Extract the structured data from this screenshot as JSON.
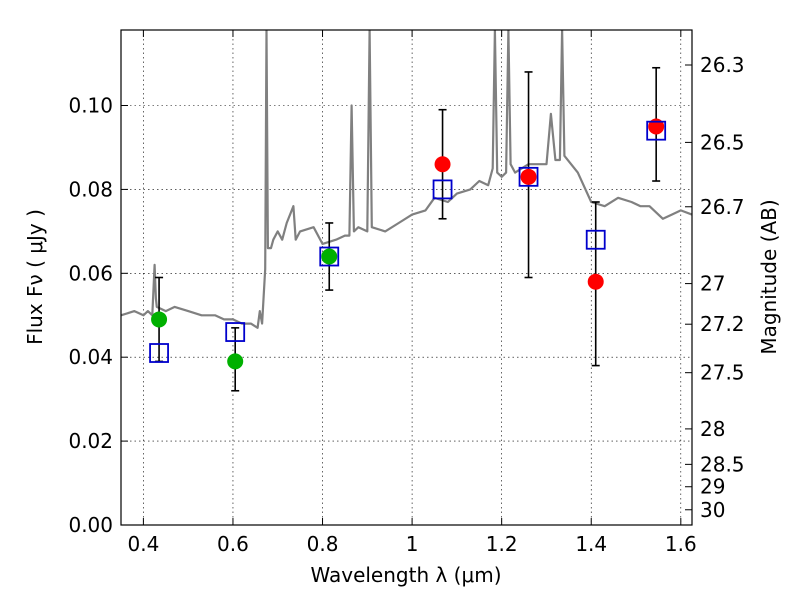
{
  "chart_data": {
    "type": "scatter",
    "xlabel": "Wavelength  λ (μm)",
    "ylabel": "Flux  Fν  ( μJy )",
    "ylabel_right": "Magnitude (AB)",
    "xlim": [
      0.35,
      1.625
    ],
    "ylim": [
      0.0,
      0.118
    ],
    "grid": true,
    "x_ticks": [
      {
        "value": 0.4,
        "label": "0.4"
      },
      {
        "value": 0.6,
        "label": "0.6"
      },
      {
        "value": 0.8,
        "label": "0.8"
      },
      {
        "value": 1.0,
        "label": "1"
      },
      {
        "value": 1.2,
        "label": "1.2"
      },
      {
        "value": 1.4,
        "label": "1.4"
      },
      {
        "value": 1.6,
        "label": "1.6"
      }
    ],
    "y_ticks": [
      {
        "value": 0.0,
        "label": "0.00"
      },
      {
        "value": 0.02,
        "label": "0.02"
      },
      {
        "value": 0.04,
        "label": "0.04"
      },
      {
        "value": 0.06,
        "label": "0.06"
      },
      {
        "value": 0.08,
        "label": "0.08"
      },
      {
        "value": 0.1,
        "label": "0.10"
      }
    ],
    "right_ticks": [
      {
        "mag": 26.3,
        "label": "26.3"
      },
      {
        "mag": 26.5,
        "label": "26.5"
      },
      {
        "mag": 26.7,
        "label": "26.7"
      },
      {
        "mag": 27.0,
        "label": "27"
      },
      {
        "mag": 27.2,
        "label": "27.2"
      },
      {
        "mag": 27.5,
        "label": "27.5"
      },
      {
        "mag": 28.0,
        "label": "28"
      },
      {
        "mag": 28.5,
        "label": "28.5"
      },
      {
        "mag": 29.0,
        "label": "29"
      },
      {
        "mag": 30.0,
        "label": "30"
      }
    ],
    "colors": {
      "template": "#808080",
      "green": "#00b000",
      "red": "#ff0000",
      "model": "#0000cc",
      "errorbar": "#000000"
    },
    "template_spectrum": [
      [
        0.35,
        0.05
      ],
      [
        0.38,
        0.051
      ],
      [
        0.4,
        0.05
      ],
      [
        0.41,
        0.051
      ],
      [
        0.42,
        0.05
      ],
      [
        0.425,
        0.062
      ],
      [
        0.428,
        0.054
      ],
      [
        0.43,
        0.052
      ],
      [
        0.45,
        0.051
      ],
      [
        0.47,
        0.052
      ],
      [
        0.5,
        0.051
      ],
      [
        0.53,
        0.05
      ],
      [
        0.56,
        0.05
      ],
      [
        0.58,
        0.049
      ],
      [
        0.6,
        0.049
      ],
      [
        0.62,
        0.048
      ],
      [
        0.64,
        0.048
      ],
      [
        0.655,
        0.047
      ],
      [
        0.66,
        0.051
      ],
      [
        0.665,
        0.048
      ],
      [
        0.672,
        0.061
      ],
      [
        0.675,
        0.118
      ],
      [
        0.678,
        0.066
      ],
      [
        0.685,
        0.066
      ],
      [
        0.69,
        0.068
      ],
      [
        0.7,
        0.07
      ],
      [
        0.71,
        0.068
      ],
      [
        0.72,
        0.072
      ],
      [
        0.735,
        0.076
      ],
      [
        0.74,
        0.068
      ],
      [
        0.75,
        0.07
      ],
      [
        0.78,
        0.071
      ],
      [
        0.8,
        0.067
      ],
      [
        0.83,
        0.068
      ],
      [
        0.85,
        0.069
      ],
      [
        0.86,
        0.069
      ],
      [
        0.865,
        0.1
      ],
      [
        0.87,
        0.07
      ],
      [
        0.88,
        0.071
      ],
      [
        0.9,
        0.07
      ],
      [
        0.905,
        0.118
      ],
      [
        0.91,
        0.071
      ],
      [
        0.94,
        0.07
      ],
      [
        0.97,
        0.072
      ],
      [
        1.0,
        0.074
      ],
      [
        1.03,
        0.075
      ],
      [
        1.05,
        0.078
      ],
      [
        1.08,
        0.077
      ],
      [
        1.1,
        0.079
      ],
      [
        1.13,
        0.08
      ],
      [
        1.15,
        0.082
      ],
      [
        1.17,
        0.081
      ],
      [
        1.18,
        0.085
      ],
      [
        1.185,
        0.118
      ],
      [
        1.19,
        0.084
      ],
      [
        1.2,
        0.083
      ],
      [
        1.21,
        0.084
      ],
      [
        1.215,
        0.118
      ],
      [
        1.22,
        0.086
      ],
      [
        1.23,
        0.084
      ],
      [
        1.26,
        0.086
      ],
      [
        1.28,
        0.086
      ],
      [
        1.3,
        0.086
      ],
      [
        1.31,
        0.098
      ],
      [
        1.32,
        0.087
      ],
      [
        1.33,
        0.087
      ],
      [
        1.335,
        0.118
      ],
      [
        1.34,
        0.088
      ],
      [
        1.37,
        0.084
      ],
      [
        1.4,
        0.077
      ],
      [
        1.43,
        0.076
      ],
      [
        1.46,
        0.078
      ],
      [
        1.49,
        0.077
      ],
      [
        1.51,
        0.076
      ],
      [
        1.53,
        0.076
      ],
      [
        1.56,
        0.073
      ],
      [
        1.58,
        0.074
      ],
      [
        1.6,
        0.075
      ],
      [
        1.625,
        0.074
      ]
    ],
    "green_points": [
      {
        "x": 0.435,
        "y": 0.049
      },
      {
        "x": 0.605,
        "y": 0.039
      },
      {
        "x": 0.815,
        "y": 0.064
      }
    ],
    "red_points": [
      {
        "x": 1.068,
        "y": 0.086
      },
      {
        "x": 1.26,
        "y": 0.083
      },
      {
        "x": 1.41,
        "y": 0.058
      },
      {
        "x": 1.545,
        "y": 0.095
      }
    ],
    "model_points": [
      {
        "x": 0.435,
        "y": 0.041
      },
      {
        "x": 0.605,
        "y": 0.046
      },
      {
        "x": 0.815,
        "y": 0.064
      },
      {
        "x": 1.068,
        "y": 0.08
      },
      {
        "x": 1.26,
        "y": 0.083
      },
      {
        "x": 1.41,
        "y": 0.068
      },
      {
        "x": 1.545,
        "y": 0.094
      }
    ],
    "error_bars": [
      {
        "x": 0.435,
        "low": 0.039,
        "high": 0.059
      },
      {
        "x": 0.605,
        "low": 0.032,
        "high": 0.047
      },
      {
        "x": 0.815,
        "low": 0.056,
        "high": 0.072
      },
      {
        "x": 1.068,
        "low": 0.073,
        "high": 0.099
      },
      {
        "x": 1.26,
        "low": 0.059,
        "high": 0.108
      },
      {
        "x": 1.41,
        "low": 0.038,
        "high": 0.077
      },
      {
        "x": 1.545,
        "low": 0.082,
        "high": 0.109
      }
    ]
  }
}
